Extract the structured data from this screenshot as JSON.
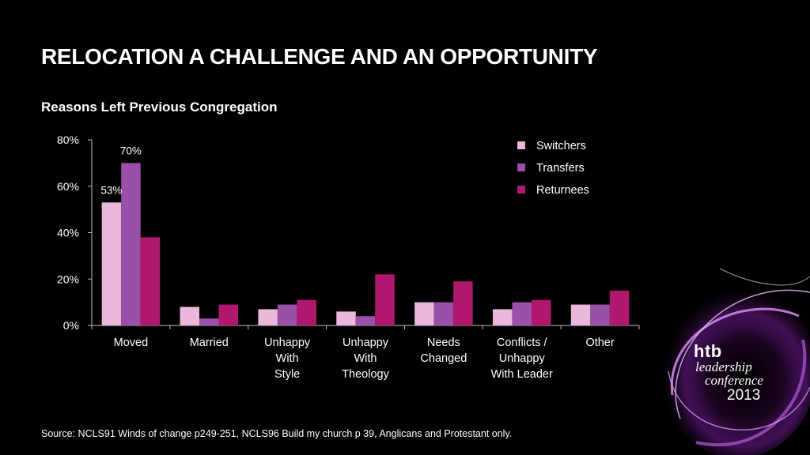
{
  "slide": {
    "title": "RELOCATION A CHALLENGE AND AN OPPORTUNITY",
    "source": "Source: NCLS91 Winds of change p249-251, NCLS96 Build my church p 39, Anglicans and Protestant only."
  },
  "logo": {
    "brand": "htb",
    "line1": "leadership",
    "line2": "conference",
    "year": "2013"
  },
  "chart_data": {
    "type": "bar",
    "title": "Reasons Left Previous Congregation",
    "categories": [
      [
        "Moved"
      ],
      [
        "Married"
      ],
      [
        "Unhappy",
        "With",
        "Style"
      ],
      [
        "Unhappy",
        "With",
        "Theology"
      ],
      [
        "Needs",
        "Changed"
      ],
      [
        "Conflicts /",
        "Unhappy",
        "With Leader"
      ],
      [
        "Other"
      ]
    ],
    "series": [
      {
        "name": "Switchers",
        "color": "#e9b8da",
        "values": [
          53,
          8,
          7,
          6,
          10,
          7,
          9
        ]
      },
      {
        "name": "Transfers",
        "color": "#9a4fa8",
        "values": [
          70,
          3,
          9,
          4,
          10,
          10,
          9
        ]
      },
      {
        "name": "Returnees",
        "color": "#b0176e",
        "values": [
          38,
          9,
          11,
          22,
          19,
          11,
          15
        ]
      }
    ],
    "data_labels": [
      {
        "series": 0,
        "index": 0,
        "text": "53%"
      },
      {
        "series": 1,
        "index": 0,
        "text": "70%"
      }
    ],
    "ylim": [
      0,
      80
    ],
    "yticks": [
      "0%",
      "20%",
      "40%",
      "60%",
      "80%"
    ],
    "ytick_values": [
      0,
      20,
      40,
      60,
      80
    ],
    "grid": false,
    "legend_position": "top-right",
    "axis_color": "#bfbfbf"
  }
}
